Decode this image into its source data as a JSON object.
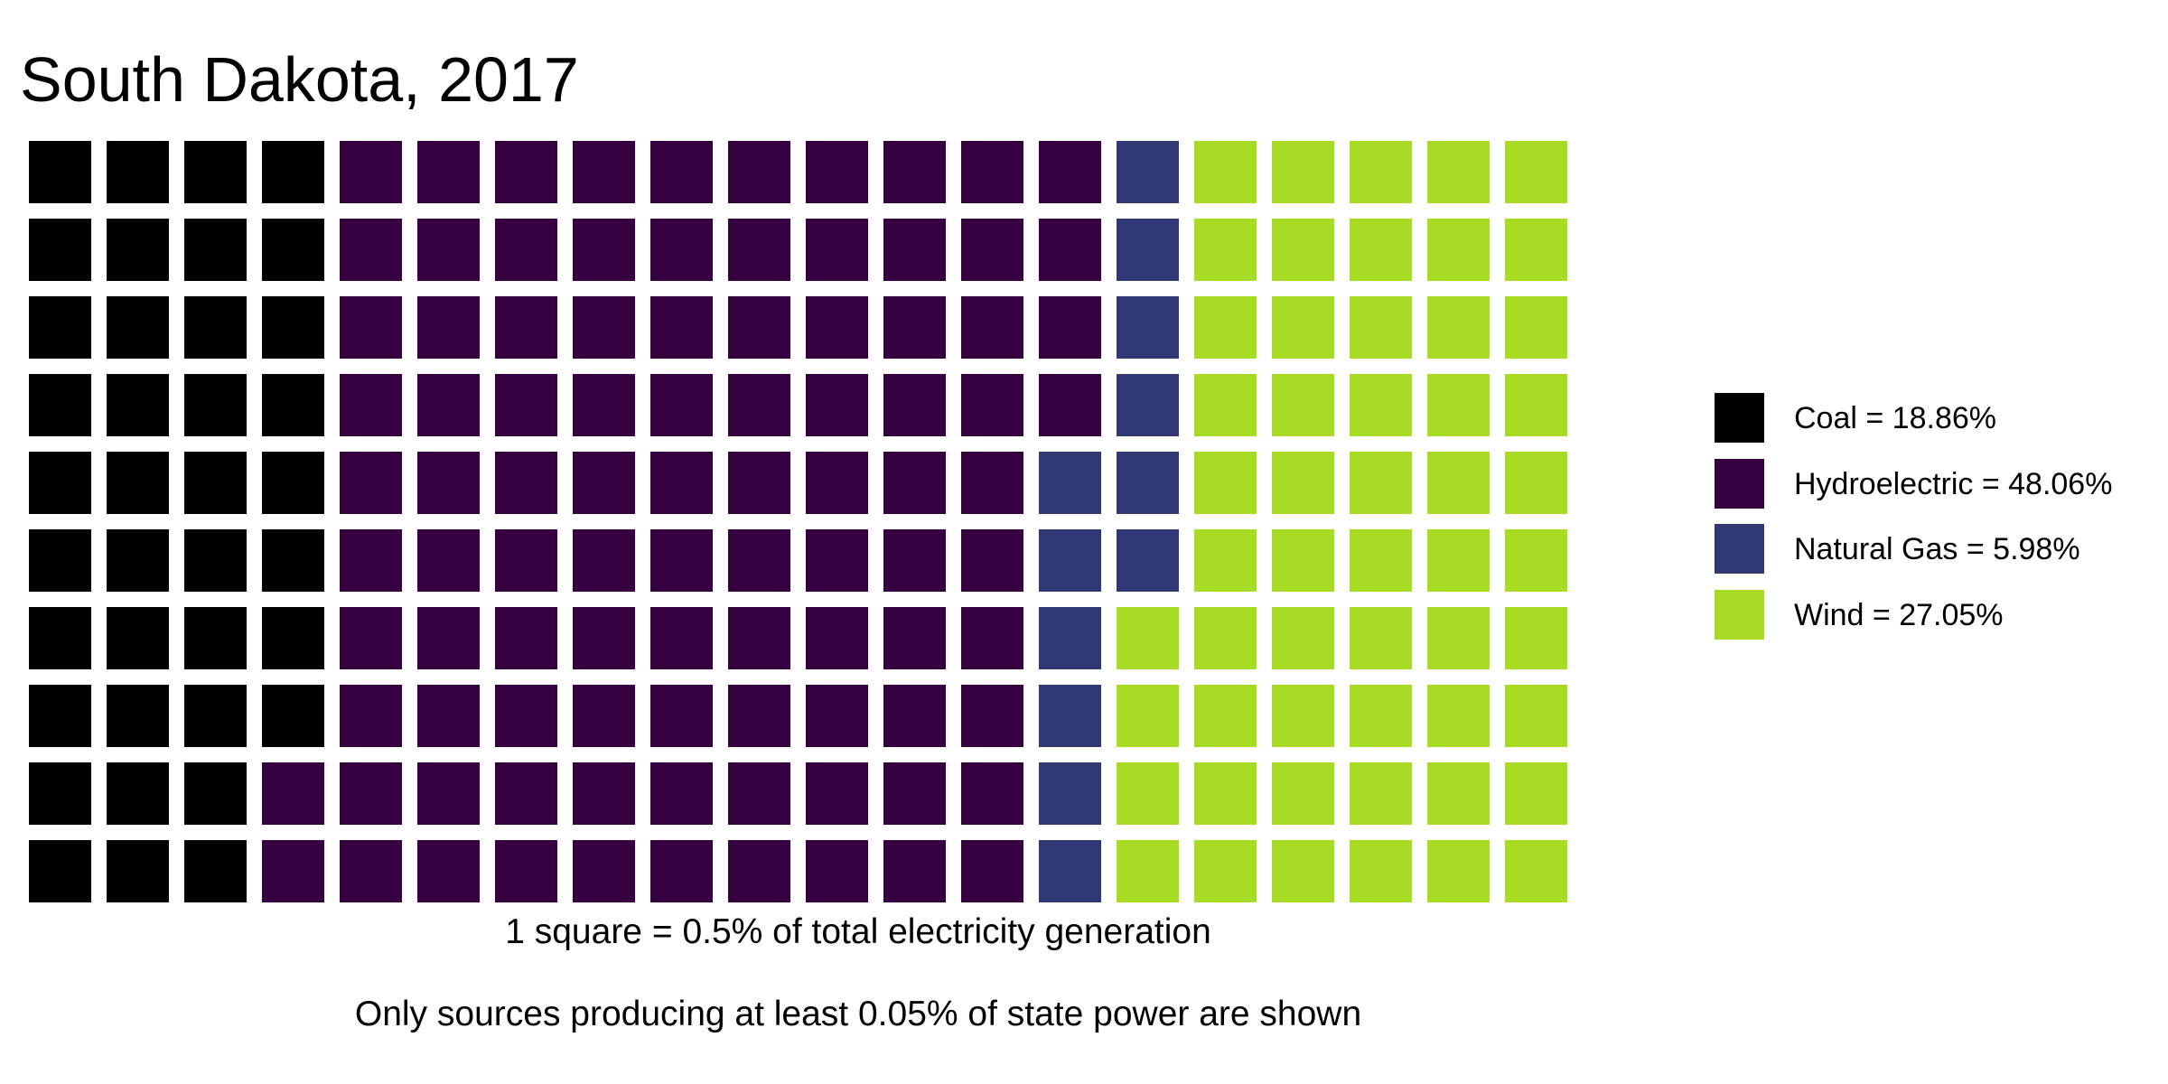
{
  "chart_data": {
    "type": "waffle",
    "title": "South Dakota, 2017",
    "grid": {
      "rows": 10,
      "columns": 20
    },
    "unit_percent": 0.5,
    "caption": "1 square = 0.5% of total electricity generation",
    "note": "Only sources producing at least 0.05% of state power are shown",
    "legend_position": "right",
    "series": [
      {
        "name": "Coal",
        "percent": 18.86,
        "squares": 38,
        "color": "#000004",
        "label": "Coal = 18.86%"
      },
      {
        "name": "Hydroelectric",
        "percent": 48.06,
        "squares": 96,
        "color": "#360040",
        "label": "Hydroelectric = 48.06%"
      },
      {
        "name": "Natural Gas",
        "percent": 5.98,
        "squares": 12,
        "color": "#2f3873",
        "label": "Natural Gas = 5.98%"
      },
      {
        "name": "Wind",
        "percent": 27.05,
        "squares": 54,
        "color": "#a8dc24",
        "label": "Wind = 27.05%"
      }
    ]
  }
}
